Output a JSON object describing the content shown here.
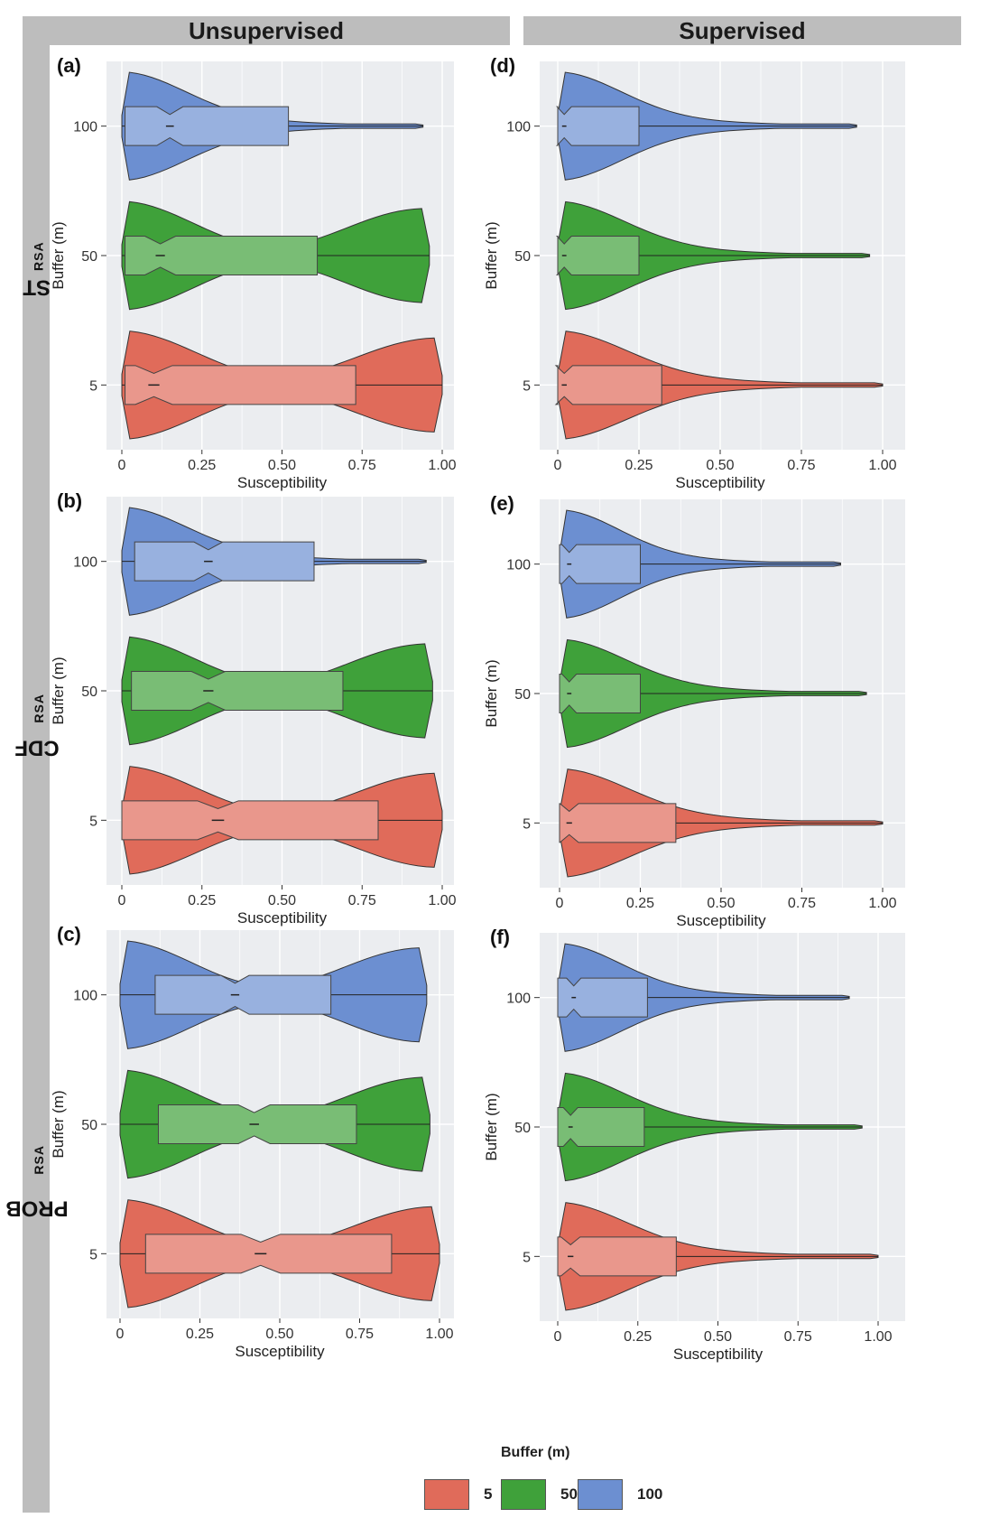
{
  "columns": [
    "Unsupervised",
    "Supervised"
  ],
  "rows": [
    {
      "main": "ST",
      "sub": "RSA"
    },
    {
      "main": "CDF",
      "sub": "RSA"
    },
    {
      "main": "PROB",
      "sub": "RSA"
    }
  ],
  "legend": {
    "title": "Buffer (m)",
    "items": [
      {
        "label": "5",
        "color": "#e06b5a"
      },
      {
        "label": "50",
        "color": "#3fa13a"
      },
      {
        "label": "100",
        "color": "#6c8fd1"
      }
    ]
  },
  "chart_data": [
    {
      "panel": "(a)",
      "type": "violin",
      "xlabel": "Susceptibility",
      "ylabel": "Buffer (m)",
      "xticks": [
        "0",
        "0.25",
        "0.50",
        "0.75",
        "1.00"
      ],
      "categories": [
        "100",
        "50",
        "5"
      ],
      "series": [
        {
          "name": "100",
          "min": 0.0,
          "max": 0.94,
          "q1": 0.01,
          "median": 0.15,
          "q3": 0.52
        },
        {
          "name": "50",
          "min": 0.0,
          "max": 0.96,
          "q1": 0.01,
          "median": 0.12,
          "q3": 0.61
        },
        {
          "name": "5",
          "min": 0.0,
          "max": 1.0,
          "q1": 0.01,
          "median": 0.1,
          "q3": 0.73
        }
      ]
    },
    {
      "panel": "(d)",
      "type": "violin",
      "xlabel": "Susceptibility",
      "ylabel": "Buffer (m)",
      "xticks": [
        "0",
        "0.25",
        "0.50",
        "0.75",
        "1.00"
      ],
      "categories": [
        "100",
        "50",
        "5"
      ],
      "series": [
        {
          "name": "100",
          "min": 0.0,
          "max": 0.92,
          "q1": 0.0,
          "median": 0.02,
          "q3": 0.25
        },
        {
          "name": "50",
          "min": 0.0,
          "max": 0.96,
          "q1": 0.0,
          "median": 0.02,
          "q3": 0.25
        },
        {
          "name": "5",
          "min": 0.0,
          "max": 1.0,
          "q1": 0.0,
          "median": 0.02,
          "q3": 0.32
        }
      ]
    },
    {
      "panel": "(b)",
      "type": "violin",
      "xlabel": "Susceptibility",
      "ylabel": "Buffer (m)",
      "xticks": [
        "0",
        "0.25",
        "0.50",
        "0.75",
        "1.00"
      ],
      "categories": [
        "100",
        "50",
        "5"
      ],
      "series": [
        {
          "name": "100",
          "min": 0.0,
          "max": 0.95,
          "q1": 0.04,
          "median": 0.27,
          "q3": 0.6
        },
        {
          "name": "50",
          "min": 0.0,
          "max": 0.97,
          "q1": 0.03,
          "median": 0.27,
          "q3": 0.69
        },
        {
          "name": "5",
          "min": 0.0,
          "max": 1.0,
          "q1": 0.0,
          "median": 0.3,
          "q3": 0.8
        }
      ]
    },
    {
      "panel": "(e)",
      "type": "violin",
      "xlabel": "Susceptibility",
      "ylabel": "Buffer (m)",
      "xticks": [
        "0",
        "0.25",
        "0.50",
        "0.75",
        "1.00"
      ],
      "categories": [
        "100",
        "50",
        "5"
      ],
      "series": [
        {
          "name": "100",
          "min": 0.0,
          "max": 0.87,
          "q1": 0.0,
          "median": 0.03,
          "q3": 0.25
        },
        {
          "name": "50",
          "min": 0.0,
          "max": 0.95,
          "q1": 0.0,
          "median": 0.03,
          "q3": 0.25
        },
        {
          "name": "5",
          "min": 0.0,
          "max": 1.0,
          "q1": 0.0,
          "median": 0.03,
          "q3": 0.36
        }
      ]
    },
    {
      "panel": "(c)",
      "type": "violin",
      "xlabel": "Susceptibility",
      "ylabel": "Buffer (m)",
      "xticks": [
        "0",
        "0.25",
        "0.50",
        "0.75",
        "1.00"
      ],
      "categories": [
        "100",
        "50",
        "5"
      ],
      "series": [
        {
          "name": "100",
          "min": 0.0,
          "max": 0.96,
          "q1": 0.11,
          "median": 0.36,
          "q3": 0.66
        },
        {
          "name": "50",
          "min": 0.0,
          "max": 0.97,
          "q1": 0.12,
          "median": 0.42,
          "q3": 0.74
        },
        {
          "name": "5",
          "min": 0.0,
          "max": 1.0,
          "q1": 0.08,
          "median": 0.44,
          "q3": 0.85
        }
      ]
    },
    {
      "panel": "(f)",
      "type": "violin",
      "xlabel": "Susceptibility",
      "ylabel": "Buffer (m)",
      "xticks": [
        "0",
        "0.25",
        "0.50",
        "0.75",
        "1.00"
      ],
      "categories": [
        "100",
        "50",
        "5"
      ],
      "series": [
        {
          "name": "100",
          "min": 0.0,
          "max": 0.91,
          "q1": 0.0,
          "median": 0.05,
          "q3": 0.28
        },
        {
          "name": "50",
          "min": 0.0,
          "max": 0.95,
          "q1": 0.0,
          "median": 0.04,
          "q3": 0.27
        },
        {
          "name": "5",
          "min": 0.0,
          "max": 1.0,
          "q1": 0.0,
          "median": 0.04,
          "q3": 0.37
        }
      ]
    }
  ]
}
